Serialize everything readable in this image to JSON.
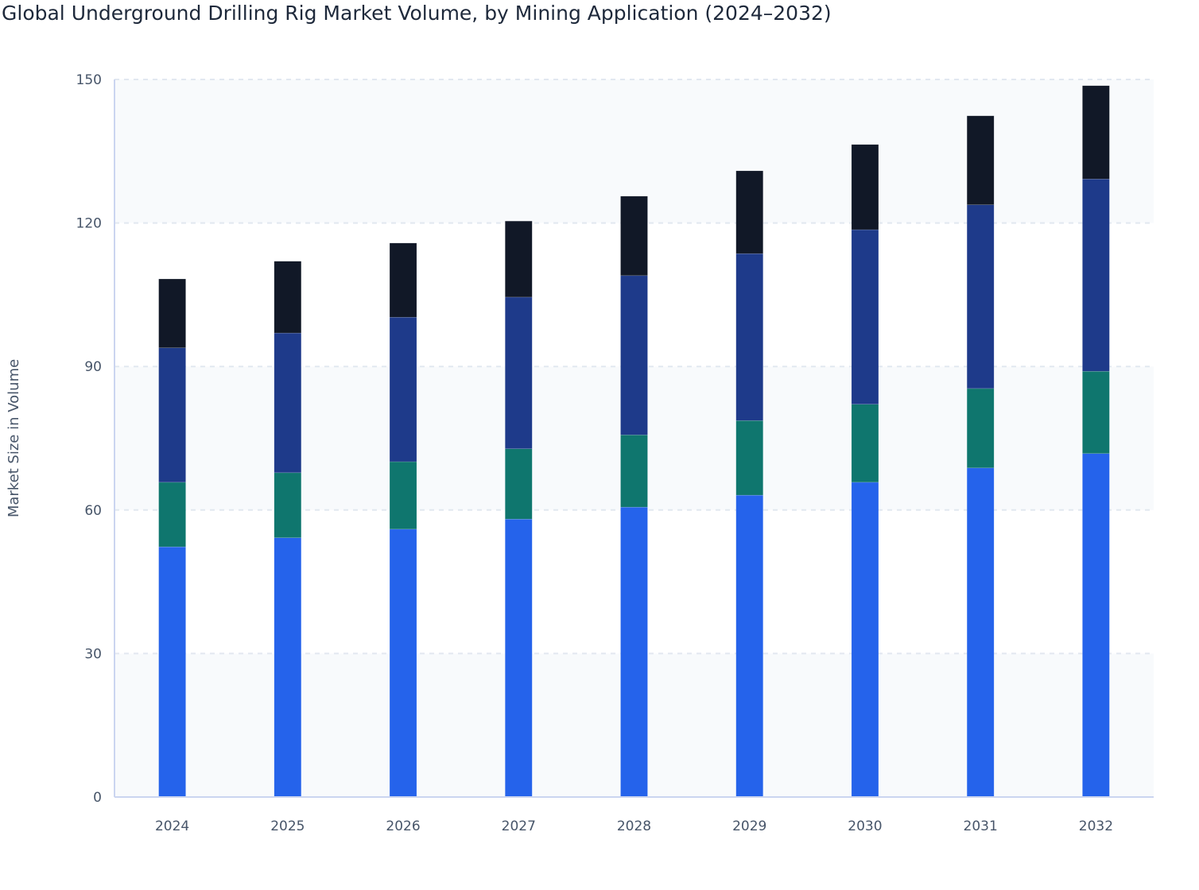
{
  "chart_data": {
    "type": "bar",
    "stacked": true,
    "title": "Global Underground Drilling Rig Market Volume, by Mining Application (2024–2032)",
    "xlabel": "",
    "ylabel": "Market Size in Volume",
    "ylim": [
      0,
      150
    ],
    "yticks": [
      0,
      30,
      60,
      90,
      120,
      150
    ],
    "grid": true,
    "legend": "none",
    "categories": [
      "2024",
      "2025",
      "2026",
      "2027",
      "2028",
      "2029",
      "2030",
      "2031",
      "2032"
    ],
    "series": [
      {
        "color": "#2563eb",
        "values": [
          52.3,
          54.2,
          56.0,
          58.1,
          60.6,
          63.1,
          65.8,
          68.8,
          71.8
        ]
      },
      {
        "color": "#0f766e",
        "values": [
          13.5,
          13.6,
          14.1,
          14.7,
          15.1,
          15.6,
          16.3,
          16.6,
          17.2
        ]
      },
      {
        "color": "#1e3a8a",
        "values": [
          28.1,
          29.2,
          30.2,
          31.7,
          33.3,
          34.9,
          36.5,
          38.4,
          40.2
        ]
      },
      {
        "color": "#111827",
        "values": [
          14.4,
          15.0,
          15.5,
          15.9,
          16.6,
          17.3,
          17.8,
          18.6,
          19.5
        ]
      }
    ]
  }
}
